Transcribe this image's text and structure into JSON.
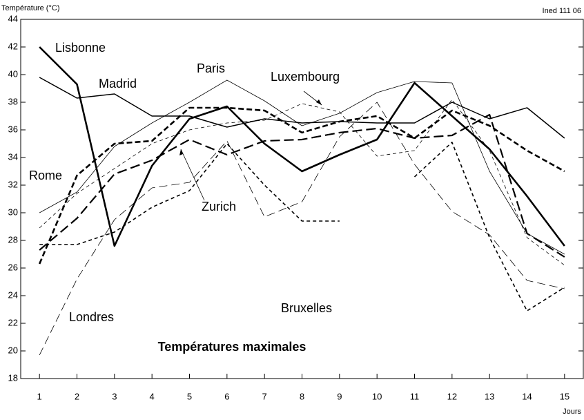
{
  "chart_data": {
    "type": "line",
    "title": "Températures maximales",
    "y_label": "Température (°C)",
    "x_label": "Jours",
    "source": "Ined 111 06",
    "x": [
      1,
      2,
      3,
      4,
      5,
      6,
      7,
      8,
      9,
      10,
      11,
      12,
      13,
      14,
      15
    ],
    "xlim": [
      0.5,
      15.5
    ],
    "xticks": [
      1,
      2,
      3,
      4,
      5,
      6,
      7,
      8,
      9,
      10,
      11,
      12,
      13,
      14,
      15
    ],
    "ylim": [
      18,
      44
    ],
    "yticks": [
      18,
      20,
      22,
      24,
      26,
      28,
      30,
      32,
      34,
      36,
      38,
      40,
      42,
      44
    ],
    "series": [
      {
        "name": "Lisbonne",
        "color": "#000000",
        "width": 2.6,
        "dash": "none",
        "values": [
          42,
          39.3,
          27.6,
          33.4,
          36.8,
          37.7,
          35,
          33,
          34.2,
          35.3,
          39.4,
          37,
          34.6,
          31.2,
          27.6
        ]
      },
      {
        "name": "Madrid",
        "color": "#000000",
        "width": 1.5,
        "dash": "none",
        "values": [
          39.8,
          38.3,
          38.6,
          37,
          37,
          36.2,
          36.8,
          36.5,
          36.6,
          36.5,
          36.5,
          38,
          36.8,
          37.6,
          35.4
        ]
      },
      {
        "name": "Paris",
        "color": "#000000",
        "width": 0.8,
        "dash": "none",
        "values": [
          30,
          31.5,
          34.8,
          36.5,
          38,
          39.6,
          38.1,
          36.3,
          37.2,
          38.7,
          39.5,
          39.4,
          33,
          28.5,
          27
        ]
      },
      {
        "name": "Luxembourg",
        "color": "#000000",
        "width": 0.8,
        "dash": "5,4",
        "values": [
          28.9,
          31.4,
          33.2,
          35,
          36,
          36.5,
          36.7,
          37.9,
          37.3,
          34.1,
          34.5,
          38.2,
          34.5,
          28.2,
          26.2
        ]
      },
      {
        "name": "Rome",
        "color": "#000000",
        "width": 2.6,
        "dash": "8,4",
        "values": [
          26.3,
          32.7,
          35,
          35.2,
          37.6,
          37.6,
          37.4,
          35.8,
          36.6,
          37,
          35.4,
          37.4,
          36.3,
          34.5,
          33
        ]
      },
      {
        "name": "Zurich",
        "color": "#000000",
        "width": 2.2,
        "dash": "14,6",
        "values": [
          27.3,
          29.6,
          32.8,
          33.8,
          35.3,
          34.2,
          35.2,
          35.3,
          35.8,
          36.1,
          35.4,
          35.6,
          37.1,
          28.5,
          26.8
        ]
      },
      {
        "name": "Londres",
        "color": "#000000",
        "width": 0.8,
        "dash": "12,6",
        "values": [
          19.7,
          25.2,
          29.5,
          31.8,
          32.2,
          35.2,
          29.7,
          30.8,
          35.5,
          38,
          33.5,
          30.1,
          28.4,
          25.1,
          24.5
        ]
      },
      {
        "name": "Bruxelles",
        "color": "#000000",
        "width": 1.6,
        "dash": "5,4",
        "values": [
          27.7,
          27.7,
          28.6,
          30.4,
          31.6,
          35,
          32,
          29.4,
          29.4,
          null,
          32.6,
          35.1,
          28.2,
          22.9,
          24.6
        ]
      }
    ]
  }
}
